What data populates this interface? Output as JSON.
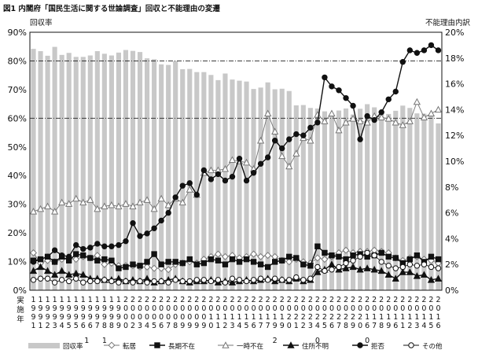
{
  "title": "図1 内閣府「国民生活に関する世論調査」回収と不能理由の変遷",
  "chart_data": {
    "type": "bar",
    "title": "図1 内閣府「国民生活に関する世論調査」回収と不能理由の変遷",
    "left_axis_label": "回収率",
    "right_axis_label": "不能理由内訳",
    "x_axis_label": "実施年",
    "left_ylim": [
      0,
      90
    ],
    "left_ticks": [
      "0%",
      "10%",
      "20%",
      "30%",
      "40%",
      "50%",
      "60%",
      "70%",
      "80%",
      "90%"
    ],
    "right_ylim": [
      0,
      20
    ],
    "right_ticks": [
      "0%",
      "2%",
      "4%",
      "6%",
      "8%",
      "10%",
      "12%",
      "14%",
      "16%",
      "18%",
      "20%"
    ],
    "grid": false,
    "reference_lines_left": [
      60,
      80
    ],
    "x_tick_labels": [
      "1991",
      "1991",
      "1992",
      "1993",
      "1994",
      "1995",
      "1995",
      "1996",
      "1996",
      "1997",
      "1998",
      "1998",
      "1999",
      "2000",
      "2002",
      "2003",
      "2004",
      "2005",
      "2006",
      "2007",
      "2008",
      "2009",
      "2009",
      "2009",
      "2009",
      "2010",
      "2011",
      "2012",
      "2013",
      "2014",
      "2015",
      "2016",
      "2017",
      "2017",
      "2019",
      "2019",
      "2020",
      "2021",
      "2022",
      "2023",
      "2024",
      "2025",
      "2026",
      "2027",
      "2028",
      "2029",
      "2020",
      "2016",
      "2017",
      "2018",
      "2019",
      "2016",
      "2011",
      "2012",
      "2013",
      "2014",
      "2015",
      "2016"
    ],
    "x_bracket_labels": [
      {
        "text": "1",
        "under": [
          7,
          8
        ]
      },
      {
        "text": "1",
        "under": [
          10
        ]
      },
      {
        "text": "2",
        "under": [
          34
        ]
      },
      {
        "text": "0",
        "under": [
          40
        ]
      },
      {
        "text": "0",
        "under": [
          47
        ]
      }
    ],
    "series": [
      {
        "name": "回収率",
        "axis": "left",
        "kind": "bar",
        "color": "#c8c8c8",
        "values": [
          84.2,
          83.4,
          81.8,
          84.9,
          82.1,
          82.8,
          81.4,
          81.4,
          81.9,
          83.4,
          82.5,
          81.9,
          82.9,
          83.8,
          83.5,
          83.1,
          80.9,
          80.6,
          78.8,
          78.6,
          79.9,
          77.1,
          77.2,
          76.1,
          76.1,
          75.1,
          73.3,
          75.6,
          73.5,
          73.1,
          72.8,
          70.2,
          70.7,
          72.5,
          70.1,
          70.3,
          69.5,
          64.5,
          64.6,
          63.6,
          63.4,
          62.4,
          61.2,
          62.7,
          63.4,
          61.3,
          63.3,
          64.9,
          63.8,
          62.7,
          61.5,
          62.6,
          64.4,
          63.6,
          61.7,
          61.6,
          61.2,
          58.2
        ]
      },
      {
        "name": "転居",
        "axis": "right",
        "kind": "line",
        "marker": "diamond-open",
        "color": "#777777",
        "values": [
          2.9,
          2.1,
          2.3,
          2.2,
          2.4,
          2.5,
          2.4,
          2.6,
          2.5,
          2.7,
          2.0,
          2.1,
          1.9,
          1.9,
          1.9,
          1.8,
          1.8,
          1.7,
          1.7,
          1.6,
          2.0,
          2.1,
          2.2,
          2.1,
          2.4,
          2.6,
          2.8,
          2.6,
          2.7,
          2.5,
          2.6,
          2.8,
          2.6,
          2.7,
          2.6,
          2.3,
          2.2,
          2.4,
          2.2,
          2.1,
          2.5,
          2.4,
          2.6,
          2.9,
          3.1,
          2.9,
          3.0,
          3.0,
          3.1,
          3.0,
          2.9,
          2.5,
          2.3,
          2.5,
          2.6,
          2.4,
          2.3,
          2.1
        ]
      },
      {
        "name": "長期不在",
        "axis": "right",
        "kind": "line",
        "marker": "square-filled",
        "color": "#111111",
        "values": [
          2.3,
          2.4,
          2.6,
          2.2,
          2.6,
          2.3,
          2.8,
          2.7,
          2.5,
          2.3,
          2.4,
          2.3,
          1.7,
          1.8,
          2.0,
          1.9,
          2.2,
          2.8,
          2.0,
          2.2,
          2.2,
          2.1,
          2.4,
          2.0,
          2.1,
          2.4,
          2.3,
          2.0,
          2.4,
          2.2,
          2.4,
          2.2,
          2.0,
          1.8,
          2.2,
          2.3,
          2.6,
          2.5,
          2.0,
          1.9,
          3.4,
          2.9,
          2.7,
          2.6,
          2.4,
          2.7,
          2.8,
          2.6,
          2.7,
          2.9,
          2.6,
          2.5,
          2.1,
          2.4,
          2.7,
          2.2,
          2.6,
          2.4
        ]
      },
      {
        "name": "一時不在",
        "axis": "right",
        "kind": "line",
        "marker": "triangle-open",
        "color": "#777777",
        "values": [
          6.1,
          6.3,
          6.5,
          6.1,
          6.8,
          6.7,
          7.1,
          6.8,
          7.0,
          6.3,
          6.5,
          6.6,
          6.5,
          6.7,
          6.5,
          6.8,
          7.0,
          6.3,
          7.1,
          6.6,
          7.1,
          6.8,
          7.8,
          7.4,
          9.1,
          9.3,
          9.3,
          9.4,
          10.1,
          10.0,
          9.9,
          9.4,
          11.6,
          13.7,
          12.3,
          10.4,
          9.6,
          10.6,
          11.8,
          11.6,
          13.6,
          13.1,
          13.7,
          12.4,
          13.0,
          13.3,
          13.1,
          13.0,
          13.5,
          13.4,
          13.3,
          13.0,
          12.8,
          13.1,
          14.6,
          13.4,
          13.7,
          14.0
        ]
      },
      {
        "name": "住所不明",
        "axis": "right",
        "kind": "line",
        "marker": "triangle-filled",
        "color": "#111111",
        "values": [
          1.5,
          1.8,
          1.5,
          1.2,
          1.5,
          1.2,
          1.3,
          1.2,
          0.9,
          0.9,
          0.8,
          0.8,
          0.9,
          0.7,
          0.8,
          0.7,
          0.9,
          0.6,
          0.7,
          0.8,
          0.9,
          0.7,
          0.6,
          0.7,
          0.7,
          0.8,
          0.6,
          0.7,
          0.6,
          0.7,
          0.8,
          0.7,
          0.8,
          0.9,
          0.7,
          0.8,
          0.7,
          0.9,
          0.7,
          0.8,
          1.4,
          1.6,
          2.0,
          1.6,
          1.7,
          1.8,
          1.6,
          1.7,
          1.6,
          1.5,
          1.2,
          0.9,
          1.4,
          1.4,
          1.1,
          1.2,
          0.8,
          0.9
        ]
      },
      {
        "name": "拒否",
        "axis": "right",
        "kind": "line",
        "marker": "circle-filled",
        "color": "#111111",
        "values": [
          2.2,
          2.4,
          2.6,
          3.1,
          2.7,
          2.6,
          3.5,
          3.2,
          3.3,
          3.6,
          3.4,
          3.4,
          3.5,
          3.8,
          5.2,
          4.2,
          4.4,
          4.8,
          5.4,
          6.0,
          7.2,
          8.1,
          8.3,
          7.4,
          9.3,
          8.6,
          9.0,
          8.5,
          8.8,
          10.2,
          8.5,
          9.1,
          9.8,
          10.3,
          11.6,
          11.0,
          11.7,
          12.1,
          12.0,
          12.6,
          13.0,
          16.5,
          15.8,
          15.5,
          14.9,
          14.3,
          11.7,
          13.5,
          13.2,
          13.8,
          14.8,
          15.4,
          17.7,
          18.6,
          18.4,
          18.6,
          19.0,
          18.6
        ]
      },
      {
        "name": "その他",
        "axis": "right",
        "kind": "line",
        "marker": "circle-open",
        "color": "#111111",
        "values": [
          0.8,
          0.9,
          0.9,
          0.6,
          0.8,
          0.7,
          0.9,
          0.6,
          0.7,
          0.7,
          0.8,
          0.7,
          0.6,
          0.7,
          0.6,
          0.7,
          0.6,
          0.7,
          0.7,
          0.6,
          0.8,
          0.7,
          0.7,
          0.8,
          0.8,
          0.7,
          0.8,
          0.6,
          0.9,
          0.8,
          0.7,
          0.8,
          0.9,
          0.8,
          0.9,
          0.8,
          0.8,
          1.0,
          0.8,
          0.9,
          1.8,
          1.5,
          1.6,
          1.8,
          2.1,
          2.3,
          2.6,
          2.9,
          2.7,
          2.2,
          1.9,
          1.7,
          1.8,
          2.0,
          1.9,
          2.0,
          1.8,
          1.7
        ]
      }
    ],
    "legend": [
      {
        "name": "回収率",
        "marker": "bar"
      },
      {
        "name": "転居",
        "marker": "diamond-open"
      },
      {
        "name": "長期不在",
        "marker": "square-filled"
      },
      {
        "name": "一時不在",
        "marker": "triangle-open"
      },
      {
        "name": "住所不明",
        "marker": "triangle-filled"
      },
      {
        "name": "拒否",
        "marker": "circle-filled"
      },
      {
        "name": "その他",
        "marker": "circle-open"
      }
    ],
    "legend_position": "bottom"
  }
}
